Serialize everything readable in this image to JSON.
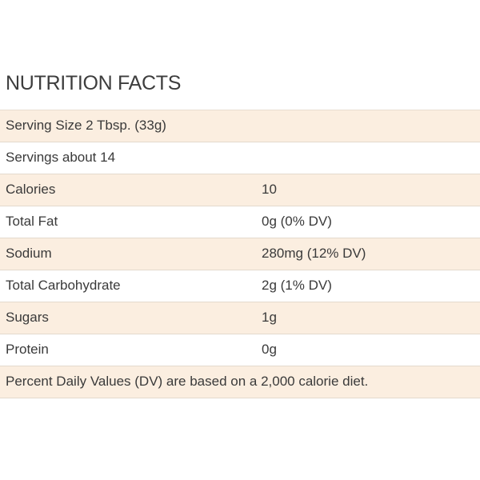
{
  "title": "NUTRITION FACTS",
  "serving_size": "Serving Size 2 Tbsp. (33g)",
  "servings": "Servings about 14",
  "nutrients": [
    {
      "label": "Calories",
      "value": "10"
    },
    {
      "label": "Total Fat",
      "value": "0g (0% DV)"
    },
    {
      "label": "Sodium",
      "value": "280mg (12% DV)"
    },
    {
      "label": "Total Carbohydrate",
      "value": "2g (1% DV)"
    },
    {
      "label": "Sugars",
      "value": "1g"
    },
    {
      "label": "Protein",
      "value": "0g"
    }
  ],
  "footnote": "Percent Daily Values (DV) are based on a 2,000 calorie diet.",
  "colors": {
    "shade_row": "#fbeee0",
    "border": "#e4dacd",
    "text": "#3a3a3a"
  }
}
